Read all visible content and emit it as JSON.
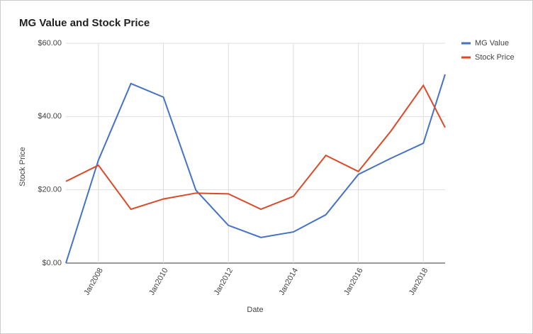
{
  "chart_data": {
    "type": "line",
    "title": "MG Value and Stock Price",
    "x_label": "Date",
    "y_label": "Stock Price",
    "x": [
      2007,
      2008,
      2009,
      2010,
      2011,
      2012,
      2013,
      2014,
      2015,
      2016,
      2017,
      2018,
      2018.67
    ],
    "series": [
      {
        "name": "MG Value",
        "color": "#4472c4",
        "values": [
          0,
          28.1,
          49.0,
          45.3,
          19.9,
          10.3,
          7.0,
          8.5,
          13.2,
          24.2,
          28.6,
          32.7,
          51.5
        ]
      },
      {
        "name": "Stock Price",
        "color": "#db4a28",
        "values": [
          22.3,
          26.7,
          14.7,
          17.5,
          19.1,
          18.9,
          14.7,
          18.2,
          29.4,
          25.0,
          36.0,
          48.5,
          37.0
        ]
      }
    ],
    "xlim": [
      2007,
      2018.67
    ],
    "xticks": [
      {
        "value": 2008,
        "label": "Jan2008"
      },
      {
        "value": 2010,
        "label": "Jan2010"
      },
      {
        "value": 2012,
        "label": "Jan2012"
      },
      {
        "value": 2014,
        "label": "Jan2014"
      },
      {
        "value": 2016,
        "label": "Jan2016"
      },
      {
        "value": 2018,
        "label": "Jan2018"
      }
    ],
    "ylim": [
      0,
      60
    ],
    "yticks": [
      {
        "value": 0,
        "label": "$0.00"
      },
      {
        "value": 20,
        "label": "$20.00"
      },
      {
        "value": 40,
        "label": "$40.00"
      },
      {
        "value": 60,
        "label": "$60.00"
      }
    ],
    "grid": true,
    "legend": "right"
  }
}
